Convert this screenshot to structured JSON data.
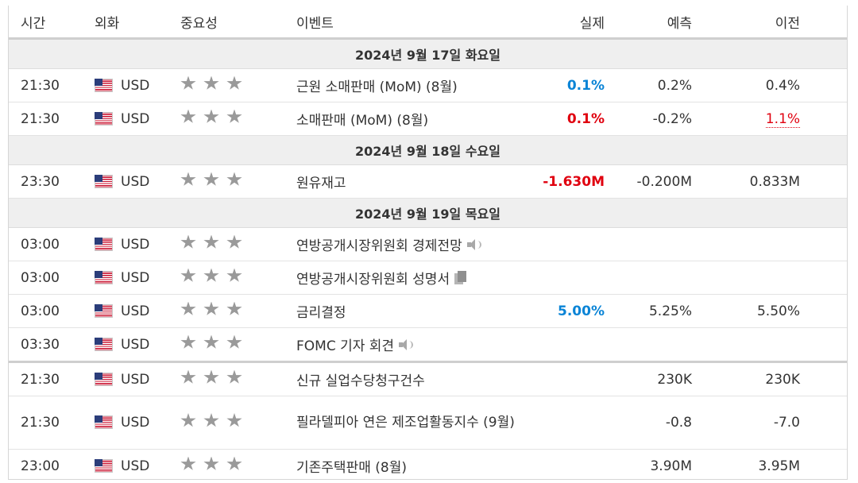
{
  "header": {
    "time": "시간",
    "currency": "외화",
    "importance": "중요성",
    "event": "이벤트",
    "actual": "실제",
    "forecast": "예측",
    "previous": "이전"
  },
  "days": [
    {
      "label": "2024년 9월 17일 화요일"
    },
    {
      "label": "2024년 9월 18일 수요일"
    },
    {
      "label": "2024년 9월 19일 목요일"
    }
  ],
  "events": [
    {
      "time": "21:30",
      "currency": "USD",
      "name": "근원 소매판매 (MoM) (8월)",
      "actual": "0.1%",
      "forecast": "0.2%",
      "previous": "0.4%",
      "actual_color": "blue",
      "stars": 3
    },
    {
      "time": "21:30",
      "currency": "USD",
      "name": "소매판매 (MoM) (8월)",
      "actual": "0.1%",
      "forecast": "-0.2%",
      "previous": "1.1%",
      "actual_color": "red",
      "previous_color": "red",
      "stars": 3
    },
    {
      "time": "23:30",
      "currency": "USD",
      "name": "원유재고",
      "actual": "-1.630M",
      "forecast": "-0.200M",
      "previous": "0.833M",
      "actual_color": "red",
      "stars": 3
    },
    {
      "time": "03:00",
      "currency": "USD",
      "name": "연방공개시장위원회 경제전망",
      "actual": "",
      "forecast": "",
      "previous": "",
      "icon": "speaker-icon",
      "stars": 3
    },
    {
      "time": "03:00",
      "currency": "USD",
      "name": "연방공개시장위원회 성명서",
      "actual": "",
      "forecast": "",
      "previous": "",
      "icon": "document-icon",
      "stars": 3
    },
    {
      "time": "03:00",
      "currency": "USD",
      "name": "금리결정",
      "actual": "5.00%",
      "forecast": "5.25%",
      "previous": "5.50%",
      "actual_color": "blue",
      "stars": 3
    },
    {
      "time": "03:30",
      "currency": "USD",
      "name": "FOMC 기자 회견",
      "actual": "",
      "forecast": "",
      "previous": "",
      "icon": "speaker-icon",
      "stars": 3
    },
    {
      "time": "21:30",
      "currency": "USD",
      "name": "신규 실업수당청구건수",
      "actual": "",
      "forecast": "230K",
      "previous": "230K",
      "stars": 3
    },
    {
      "time": "21:30",
      "currency": "USD",
      "name": "필라델피아 연은 제조업활동지수 (9월)",
      "actual": "",
      "forecast": "-0.8",
      "previous": "-7.0",
      "stars": 3
    },
    {
      "time": "23:00",
      "currency": "USD",
      "name": "기존주택판매 (8월)",
      "actual": "",
      "forecast": "3.90M",
      "previous": "3.95M",
      "stars": 3
    }
  ],
  "colors": {
    "actual_better": "#0a84d6",
    "actual_worse": "#e0000f",
    "star": "#9a9a9a",
    "day_bg": "#efefef"
  },
  "icons": {
    "flag": "us-flag-icon",
    "star": "star-icon"
  }
}
